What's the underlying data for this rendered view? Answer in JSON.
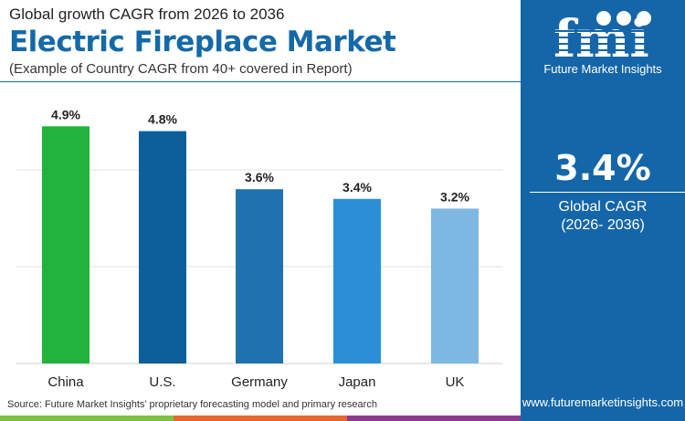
{
  "header": {
    "subtitle": "Global growth CAGR from 2026 to 2036",
    "title": "Electric Fireplace Market",
    "note": "(Example of Country CAGR from 40+ covered in Report)"
  },
  "panel": {
    "logo_text": "Future Market Insights",
    "cagr_value": "3.4%",
    "cagr_label": "Global CAGR",
    "cagr_period": "(2026- 2036)",
    "url": "www.futuremarketinsights.com",
    "background": "#1566a8"
  },
  "source": "Source: Future Market Insights’ proprietary forecasting model and primary research",
  "chart_data": {
    "type": "bar",
    "categories": [
      "China",
      "U.S.",
      "Germany",
      "Japan",
      "UK"
    ],
    "values": [
      4.9,
      4.8,
      3.6,
      3.4,
      3.2
    ],
    "labels": [
      "4.9%",
      "4.8%",
      "3.6%",
      "3.4%",
      "3.2%"
    ],
    "colors": [
      "#21b33b",
      "#0d5f9a",
      "#1f72b0",
      "#2b8fd6",
      "#7db8e3"
    ],
    "ylim": [
      0,
      6
    ],
    "grid": true,
    "gridlines": [
      2,
      4
    ]
  }
}
